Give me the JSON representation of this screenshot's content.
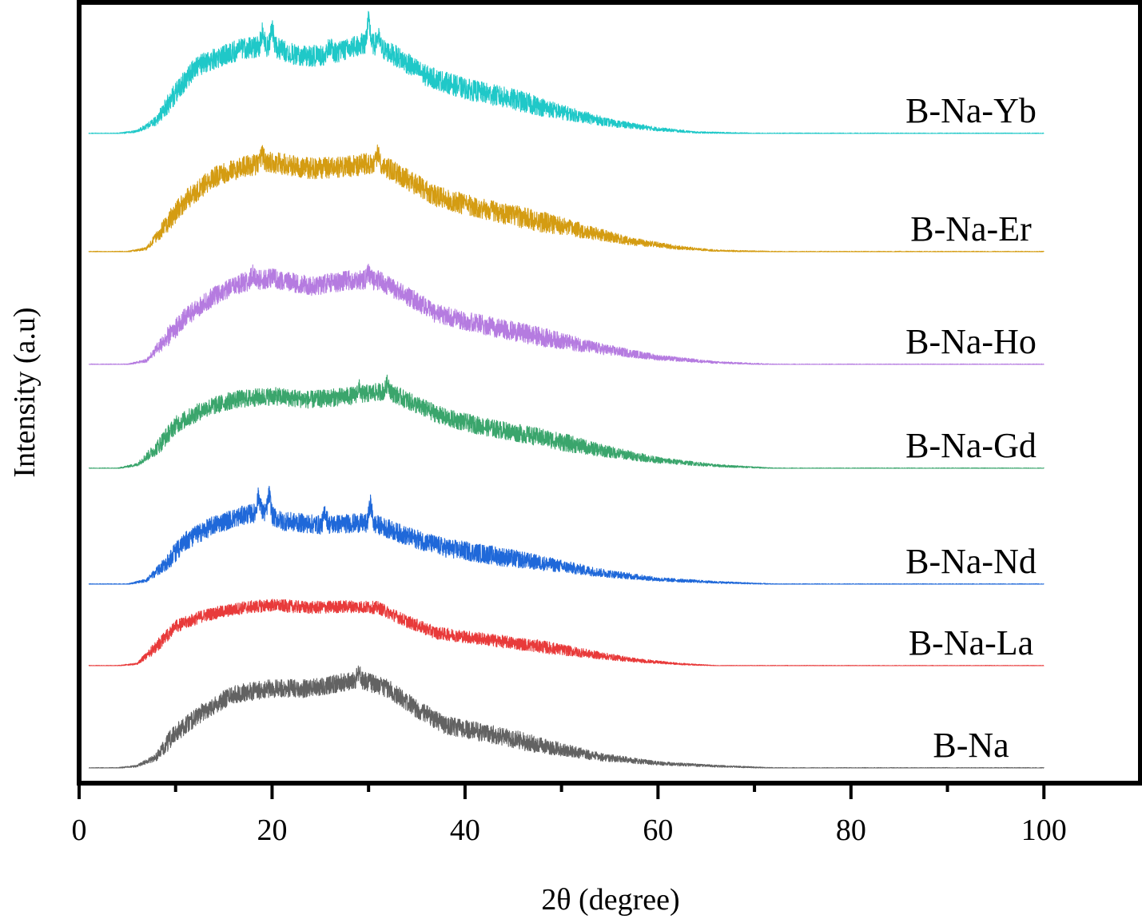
{
  "chart_data": {
    "type": "line",
    "title": "",
    "xlabel": "2θ (degree)",
    "ylabel": "Intensity (a.u)",
    "xlim": [
      0,
      110
    ],
    "x_ticks": [
      0,
      20,
      40,
      60,
      80,
      100
    ],
    "x_tick_labels": [
      "0",
      "20",
      "40",
      "60",
      "80",
      "100"
    ],
    "x_minor_ticks": [
      10,
      30,
      50,
      70,
      90
    ],
    "y_ticks_shown": false,
    "grid": false,
    "legend": "inline labels at right end of each trace",
    "x_range_of_data": [
      1,
      100
    ],
    "series": [
      {
        "name": "B-Na-Yb",
        "color": "#1fc8c8",
        "offset": 6,
        "amp": 0.98,
        "noise": 0.1,
        "shape": [
          [
            1,
            0
          ],
          [
            4,
            0
          ],
          [
            6,
            0.02
          ],
          [
            8,
            0.12
          ],
          [
            10,
            0.38
          ],
          [
            12,
            0.62
          ],
          [
            14,
            0.7
          ],
          [
            17,
            0.8
          ],
          [
            20,
            0.82
          ],
          [
            23,
            0.72
          ],
          [
            26,
            0.74
          ],
          [
            30,
            0.86
          ],
          [
            33,
            0.72
          ],
          [
            36,
            0.54
          ],
          [
            40,
            0.42
          ],
          [
            45,
            0.32
          ],
          [
            50,
            0.2
          ],
          [
            55,
            0.1
          ],
          [
            60,
            0.04
          ],
          [
            64,
            0.01
          ],
          [
            70,
            0
          ],
          [
            100,
            0
          ]
        ],
        "spikes": [
          [
            19,
            0.14
          ],
          [
            20,
            0.2
          ],
          [
            26,
            0.1
          ],
          [
            30,
            0.2
          ],
          [
            31,
            0.1
          ]
        ]
      },
      {
        "name": "B-Na-Er",
        "color": "#d49c12",
        "offset": 5,
        "amp": 0.98,
        "noise": 0.1,
        "shape": [
          [
            1,
            0
          ],
          [
            5,
            0
          ],
          [
            7,
            0.03
          ],
          [
            9,
            0.25
          ],
          [
            11,
            0.48
          ],
          [
            14,
            0.7
          ],
          [
            17,
            0.8
          ],
          [
            20,
            0.84
          ],
          [
            24,
            0.78
          ],
          [
            28,
            0.8
          ],
          [
            31,
            0.84
          ],
          [
            34,
            0.68
          ],
          [
            37,
            0.52
          ],
          [
            41,
            0.42
          ],
          [
            46,
            0.32
          ],
          [
            52,
            0.2
          ],
          [
            57,
            0.1
          ],
          [
            62,
            0.04
          ],
          [
            66,
            0.01
          ],
          [
            72,
            0
          ],
          [
            100,
            0
          ]
        ],
        "spikes": [
          [
            19,
            0.1
          ],
          [
            31,
            0.1
          ]
        ]
      },
      {
        "name": "B-Na-Ho",
        "color": "#b57be0",
        "offset": 4,
        "amp": 0.9,
        "noise": 0.1,
        "shape": [
          [
            1,
            0
          ],
          [
            5,
            0
          ],
          [
            7,
            0.04
          ],
          [
            9,
            0.26
          ],
          [
            11,
            0.48
          ],
          [
            14,
            0.7
          ],
          [
            17,
            0.84
          ],
          [
            20,
            0.88
          ],
          [
            24,
            0.8
          ],
          [
            28,
            0.86
          ],
          [
            31,
            0.86
          ],
          [
            34,
            0.7
          ],
          [
            37,
            0.52
          ],
          [
            42,
            0.4
          ],
          [
            48,
            0.28
          ],
          [
            54,
            0.16
          ],
          [
            60,
            0.07
          ],
          [
            66,
            0.02
          ],
          [
            72,
            0
          ],
          [
            100,
            0
          ]
        ],
        "spikes": [
          [
            18,
            0.08
          ],
          [
            30,
            0.08
          ]
        ]
      },
      {
        "name": "B-Na-Gd",
        "color": "#3aa56c",
        "offset": 3,
        "amp": 0.83,
        "noise": 0.1,
        "shape": [
          [
            1,
            0
          ],
          [
            4,
            0
          ],
          [
            6,
            0.04
          ],
          [
            8,
            0.22
          ],
          [
            10,
            0.48
          ],
          [
            13,
            0.66
          ],
          [
            16,
            0.76
          ],
          [
            20,
            0.8
          ],
          [
            24,
            0.76
          ],
          [
            28,
            0.8
          ],
          [
            32,
            0.86
          ],
          [
            35,
            0.7
          ],
          [
            38,
            0.56
          ],
          [
            42,
            0.46
          ],
          [
            48,
            0.34
          ],
          [
            54,
            0.2
          ],
          [
            60,
            0.09
          ],
          [
            66,
            0.03
          ],
          [
            72,
            0
          ],
          [
            100,
            0
          ]
        ],
        "spikes": [
          [
            29,
            0.08
          ],
          [
            32,
            0.1
          ]
        ]
      },
      {
        "name": "B-Na-Nd",
        "color": "#1f68d9",
        "offset": 2,
        "amp": 0.88,
        "noise": 0.1,
        "shape": [
          [
            1,
            0
          ],
          [
            5,
            0
          ],
          [
            7,
            0.04
          ],
          [
            9,
            0.22
          ],
          [
            11,
            0.45
          ],
          [
            14,
            0.62
          ],
          [
            17,
            0.72
          ],
          [
            19,
            0.76
          ],
          [
            21,
            0.66
          ],
          [
            25,
            0.62
          ],
          [
            29,
            0.64
          ],
          [
            31,
            0.62
          ],
          [
            34,
            0.5
          ],
          [
            38,
            0.38
          ],
          [
            43,
            0.3
          ],
          [
            48,
            0.22
          ],
          [
            54,
            0.12
          ],
          [
            60,
            0.05
          ],
          [
            66,
            0.02
          ],
          [
            72,
            0
          ],
          [
            100,
            0
          ]
        ],
        "spikes": [
          [
            18.6,
            0.18
          ],
          [
            19.7,
            0.22
          ],
          [
            25.5,
            0.14
          ],
          [
            30.2,
            0.22
          ]
        ]
      },
      {
        "name": "B-Na-La",
        "color": "#e83a3a",
        "offset": 1,
        "amp": 0.58,
        "noise": 0.1,
        "shape": [
          [
            1,
            0
          ],
          [
            4,
            0
          ],
          [
            6,
            0.03
          ],
          [
            8,
            0.3
          ],
          [
            10,
            0.62
          ],
          [
            13,
            0.8
          ],
          [
            17,
            0.92
          ],
          [
            20,
            0.96
          ],
          [
            24,
            0.92
          ],
          [
            28,
            0.94
          ],
          [
            31,
            0.92
          ],
          [
            34,
            0.7
          ],
          [
            37,
            0.52
          ],
          [
            42,
            0.42
          ],
          [
            48,
            0.3
          ],
          [
            54,
            0.16
          ],
          [
            58,
            0.08
          ],
          [
            62,
            0.03
          ],
          [
            66,
            0
          ],
          [
            100,
            0
          ]
        ],
        "spikes": []
      },
      {
        "name": "B-Na",
        "color": "#626262",
        "offset": 0,
        "amp": 0.85,
        "noise": 0.1,
        "shape": [
          [
            1,
            0
          ],
          [
            4,
            0
          ],
          [
            6,
            0.02
          ],
          [
            8,
            0.12
          ],
          [
            10,
            0.38
          ],
          [
            13,
            0.62
          ],
          [
            16,
            0.8
          ],
          [
            20,
            0.86
          ],
          [
            24,
            0.86
          ],
          [
            29,
            0.96
          ],
          [
            32,
            0.86
          ],
          [
            35,
            0.64
          ],
          [
            38,
            0.46
          ],
          [
            43,
            0.36
          ],
          [
            48,
            0.24
          ],
          [
            54,
            0.12
          ],
          [
            60,
            0.05
          ],
          [
            66,
            0.02
          ],
          [
            72,
            0
          ],
          [
            100,
            0
          ]
        ],
        "spikes": [
          [
            29,
            0.08
          ]
        ]
      }
    ]
  }
}
